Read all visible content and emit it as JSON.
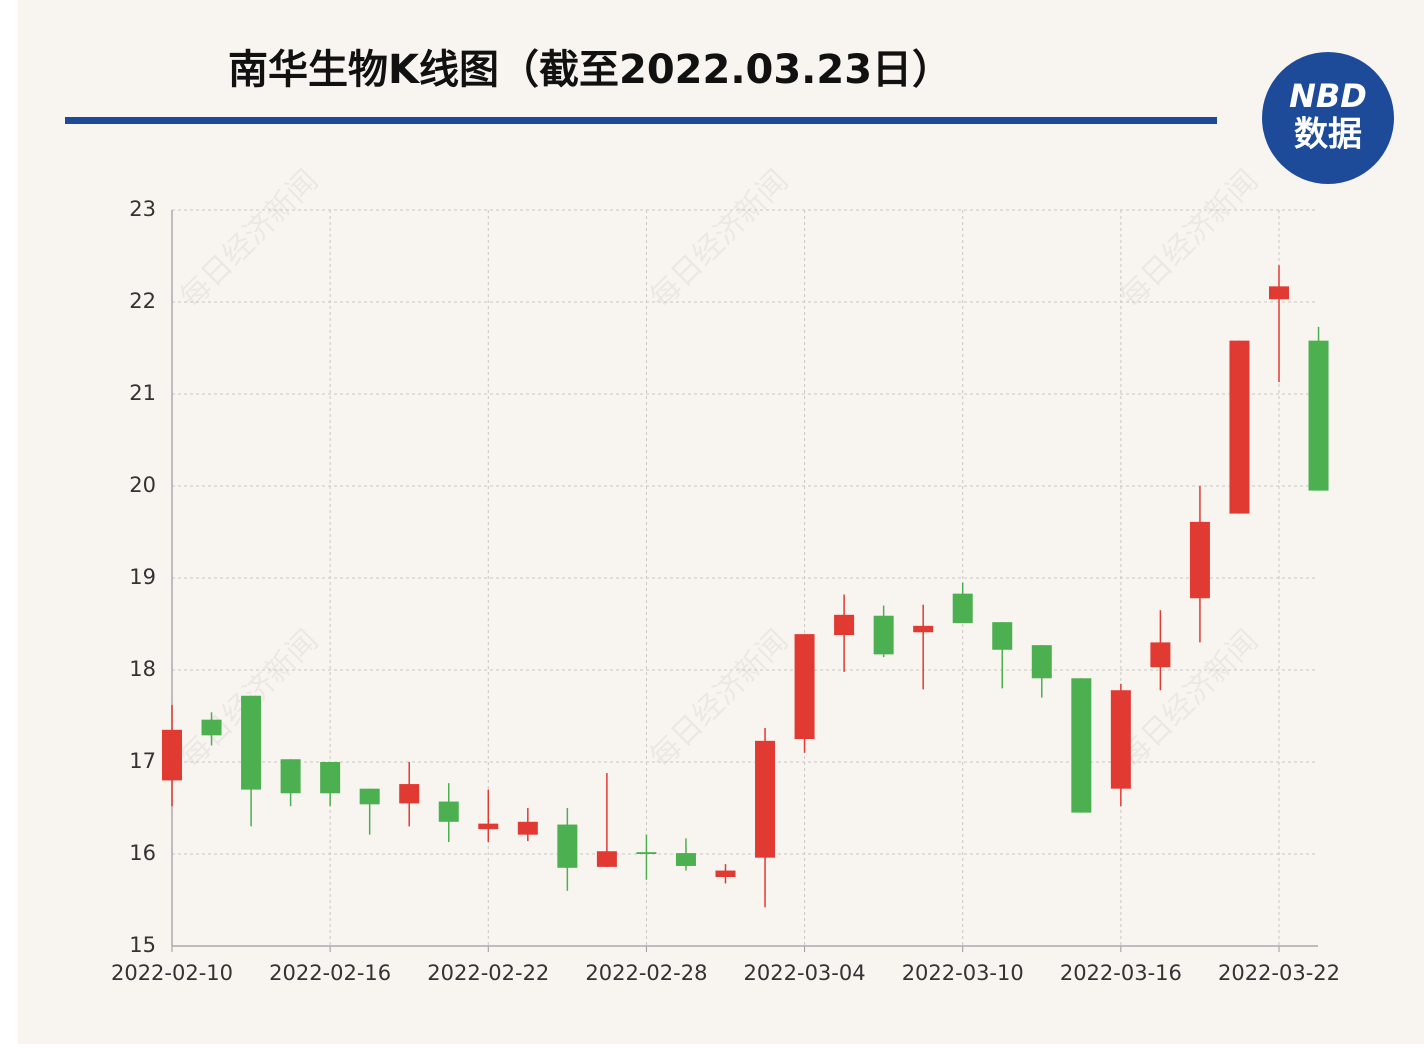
{
  "chart_data": {
    "type": "candlestick",
    "title": "南华生物K线图（截至2022.03.23日）",
    "logo": {
      "line1": "NBD",
      "line2": "数据"
    },
    "watermark": "每日经济新闻",
    "categories": [
      "2022-02-10",
      null,
      null,
      null,
      "2022-02-16",
      null,
      null,
      null,
      "2022-02-22",
      null,
      null,
      null,
      "2022-02-28",
      null,
      null,
      null,
      "2022-03-04",
      null,
      null,
      null,
      "2022-03-10",
      null,
      null,
      null,
      "2022-03-16",
      null,
      null,
      null,
      "2022-03-22",
      null
    ],
    "open": [
      16.8,
      17.46,
      17.72,
      17.03,
      17.0,
      16.71,
      16.55,
      16.57,
      16.27,
      16.21,
      16.32,
      15.86,
      16.02,
      16.01,
      15.75,
      15.96,
      17.25,
      18.38,
      18.59,
      18.41,
      18.83,
      18.52,
      18.27,
      17.91,
      16.71,
      18.03,
      18.78,
      19.7,
      22.03,
      21.58
    ],
    "high": [
      17.62,
      17.54,
      17.72,
      17.03,
      17.0,
      16.71,
      17.0,
      16.77,
      16.7,
      16.5,
      16.5,
      16.88,
      16.21,
      16.17,
      15.89,
      17.37,
      18.39,
      18.82,
      18.7,
      18.71,
      18.95,
      18.52,
      18.27,
      17.91,
      17.85,
      18.65,
      20.0,
      21.58,
      22.4,
      21.73
    ],
    "low": [
      16.52,
      17.18,
      16.3,
      16.52,
      16.52,
      16.21,
      16.3,
      16.13,
      16.13,
      16.14,
      15.6,
      15.86,
      15.72,
      15.82,
      15.68,
      15.42,
      17.1,
      17.98,
      18.14,
      17.79,
      18.51,
      17.8,
      17.7,
      16.45,
      16.52,
      17.78,
      18.3,
      19.7,
      21.13,
      19.95
    ],
    "close": [
      17.35,
      17.29,
      16.7,
      16.66,
      16.66,
      16.54,
      16.76,
      16.35,
      16.33,
      16.35,
      15.85,
      16.03,
      16.0,
      15.87,
      15.82,
      17.23,
      18.39,
      18.6,
      18.17,
      18.48,
      18.51,
      18.22,
      17.91,
      16.45,
      17.78,
      18.3,
      19.61,
      21.58,
      22.17,
      19.95
    ],
    "up_color": "#e03a33",
    "down_color": "#4caf50",
    "ylim": [
      15,
      23
    ],
    "yticks": [
      15,
      16,
      17,
      18,
      19,
      20,
      21,
      22,
      23
    ],
    "grid": true
  }
}
